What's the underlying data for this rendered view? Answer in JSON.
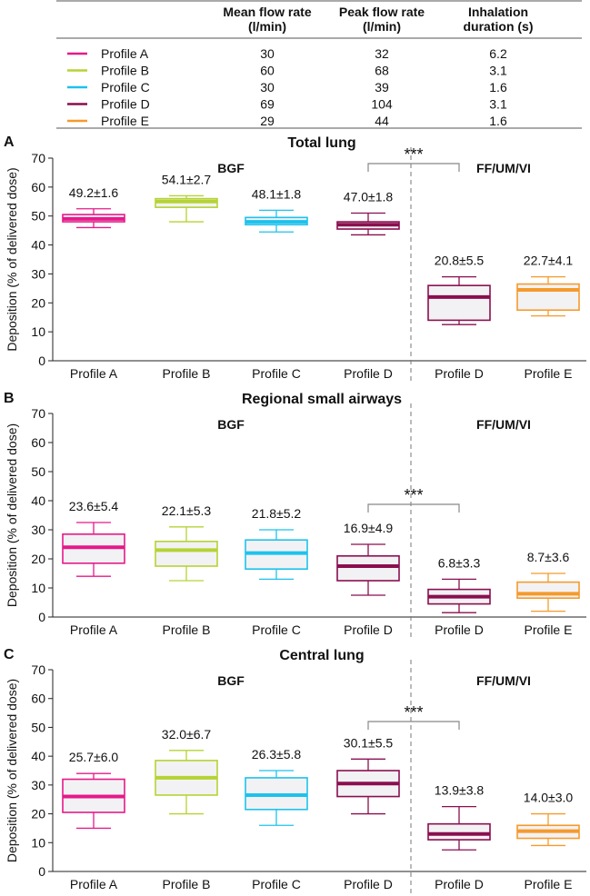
{
  "table": {
    "headers": [
      "Mean flow rate\n(l/min)",
      "Peak flow rate\n(l/min)",
      "Inhalation\nduration (s)"
    ],
    "rows": [
      {
        "profile": "Profile A",
        "color": "#e6198a",
        "mean": "30",
        "peak": "32",
        "duration": "6.2"
      },
      {
        "profile": "Profile B",
        "color": "#b5d334",
        "mean": "60",
        "peak": "68",
        "duration": "3.1"
      },
      {
        "profile": "Profile C",
        "color": "#1ec2ec",
        "mean": "30",
        "peak": "39",
        "duration": "1.6"
      },
      {
        "profile": "Profile D",
        "color": "#8a0f4f",
        "mean": "69",
        "peak": "104",
        "duration": "3.1"
      },
      {
        "profile": "Profile E",
        "color": "#f59a2c",
        "mean": "29",
        "peak": "44",
        "duration": "1.6"
      }
    ]
  },
  "chart_data": [
    {
      "type": "box",
      "panel_label": "A",
      "title": "Total lung",
      "ylabel": "Deposition (% of delivered dose)",
      "ylim": [
        0,
        70
      ],
      "yticks": [
        0,
        10,
        20,
        30,
        40,
        50,
        60,
        70
      ],
      "group_labels": [
        "BGF",
        "FF/UM/VI"
      ],
      "significance": "***",
      "boxes": [
        {
          "category": "Profile A",
          "group": "BGF",
          "color": "#e6198a",
          "min": 46,
          "q1": 48,
          "median": 49,
          "q3": 50.5,
          "max": 52.5,
          "label": "49.2±1.6"
        },
        {
          "category": "Profile B",
          "group": "BGF",
          "color": "#b5d334",
          "min": 48,
          "q1": 53,
          "median": 55,
          "q3": 56,
          "max": 57,
          "label": "54.1±2.7"
        },
        {
          "category": "Profile C",
          "group": "BGF",
          "color": "#1ec2ec",
          "min": 44.5,
          "q1": 47,
          "median": 48,
          "q3": 49.5,
          "max": 52,
          "label": "48.1±1.8"
        },
        {
          "category": "Profile D",
          "group": "BGF",
          "color": "#8a0f4f",
          "min": 43.5,
          "q1": 45.5,
          "median": 47,
          "q3": 48,
          "max": 51,
          "label": "47.0±1.8"
        },
        {
          "category": "Profile D",
          "group": "FF/UM/VI",
          "color": "#8a0f4f",
          "min": 12.5,
          "q1": 14,
          "median": 22,
          "q3": 26,
          "max": 29,
          "label": "20.8±5.5"
        },
        {
          "category": "Profile E",
          "group": "FF/UM/VI",
          "color": "#f59a2c",
          "min": 15.5,
          "q1": 17.5,
          "median": 24.5,
          "q3": 26.5,
          "max": 29,
          "label": "22.7±4.1"
        }
      ]
    },
    {
      "type": "box",
      "panel_label": "B",
      "title": "Regional small airways",
      "ylabel": "Deposition (% of delivered dose)",
      "ylim": [
        0,
        70
      ],
      "yticks": [
        0,
        10,
        20,
        30,
        40,
        50,
        60,
        70
      ],
      "group_labels": [
        "BGF",
        "FF/UM/VI"
      ],
      "significance": "***",
      "boxes": [
        {
          "category": "Profile A",
          "group": "BGF",
          "color": "#e6198a",
          "min": 14,
          "q1": 18.5,
          "median": 24,
          "q3": 28.5,
          "max": 32.5,
          "label": "23.6±5.4"
        },
        {
          "category": "Profile B",
          "group": "BGF",
          "color": "#b5d334",
          "min": 12.5,
          "q1": 17.5,
          "median": 23,
          "q3": 26,
          "max": 31,
          "label": "22.1±5.3"
        },
        {
          "category": "Profile C",
          "group": "BGF",
          "color": "#1ec2ec",
          "min": 13,
          "q1": 16.5,
          "median": 22,
          "q3": 26.5,
          "max": 30,
          "label": "21.8±5.2"
        },
        {
          "category": "Profile D",
          "group": "BGF",
          "color": "#8a0f4f",
          "min": 7.5,
          "q1": 12.5,
          "median": 17.5,
          "q3": 21,
          "max": 25,
          "label": "16.9±4.9"
        },
        {
          "category": "Profile D",
          "group": "FF/UM/VI",
          "color": "#8a0f4f",
          "min": 1.5,
          "q1": 4.5,
          "median": 7,
          "q3": 9.5,
          "max": 13,
          "label": "6.8±3.3"
        },
        {
          "category": "Profile E",
          "group": "FF/UM/VI",
          "color": "#f59a2c",
          "min": 2,
          "q1": 6.5,
          "median": 8,
          "q3": 12,
          "max": 15,
          "label": "8.7±3.6"
        }
      ]
    },
    {
      "type": "box",
      "panel_label": "C",
      "title": "Central lung",
      "ylabel": "Deposition (% of delivered dose)",
      "ylim": [
        0,
        70
      ],
      "yticks": [
        0,
        10,
        20,
        30,
        40,
        50,
        60,
        70
      ],
      "group_labels": [
        "BGF",
        "FF/UM/VI"
      ],
      "significance": "***",
      "boxes": [
        {
          "category": "Profile A",
          "group": "BGF",
          "color": "#e6198a",
          "min": 15,
          "q1": 20.5,
          "median": 26,
          "q3": 32,
          "max": 34,
          "label": "25.7±6.0"
        },
        {
          "category": "Profile B",
          "group": "BGF",
          "color": "#b5d334",
          "min": 20,
          "q1": 26.5,
          "median": 32.5,
          "q3": 38.5,
          "max": 42,
          "label": "32.0±6.7"
        },
        {
          "category": "Profile C",
          "group": "BGF",
          "color": "#1ec2ec",
          "min": 16,
          "q1": 21.5,
          "median": 26.5,
          "q3": 32.5,
          "max": 35,
          "label": "26.3±5.8"
        },
        {
          "category": "Profile D",
          "group": "BGF",
          "color": "#8a0f4f",
          "min": 20,
          "q1": 26,
          "median": 30.5,
          "q3": 35,
          "max": 39,
          "label": "30.1±5.5"
        },
        {
          "category": "Profile D",
          "group": "FF/UM/VI",
          "color": "#8a0f4f",
          "min": 7.5,
          "q1": 11,
          "median": 13,
          "q3": 16.5,
          "max": 22.5,
          "label": "13.9±3.8"
        },
        {
          "category": "Profile E",
          "group": "FF/UM/VI",
          "color": "#f59a2c",
          "min": 9,
          "q1": 11.5,
          "median": 14,
          "q3": 16,
          "max": 20,
          "label": "14.0±3.0"
        }
      ]
    }
  ]
}
